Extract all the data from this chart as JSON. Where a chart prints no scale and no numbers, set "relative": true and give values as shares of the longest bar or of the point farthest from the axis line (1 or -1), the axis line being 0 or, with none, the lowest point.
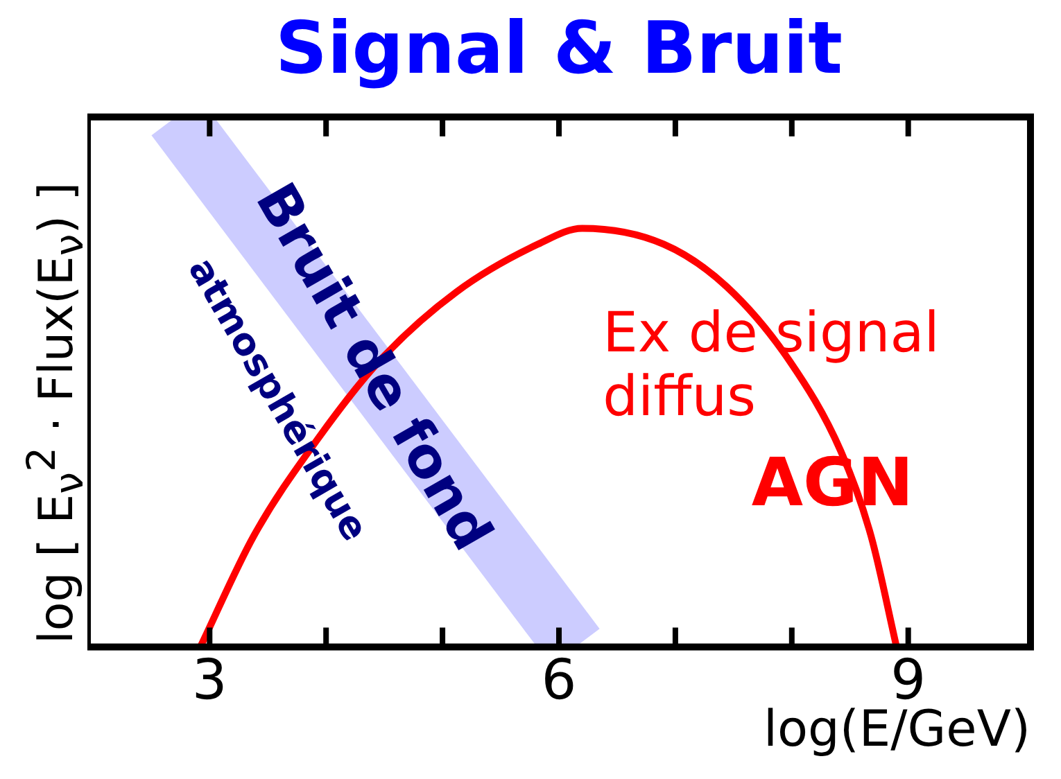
{
  "chart_data": {
    "type": "line",
    "title": "Signal & Bruit",
    "xlabel": "log(E/GeV)",
    "ylabel": "log [ E$_{ν}$$^{2}$ · Flux(E$_{ν}$) ]",
    "relative": true,
    "xlim": [
      1.95,
      10.05
    ],
    "xticks": [
      3,
      {
        "value": 4,
        "label": null
      },
      {
        "value": 5,
        "label": null
      },
      6,
      {
        "value": 7,
        "label": null
      },
      {
        "value": 8,
        "label": null
      },
      9
    ],
    "series": [
      {
        "color": "#ccccff",
        "x": [
          2.71,
          6.14
        ],
        "values": [
          1,
          0
        ]
      },
      {
        "color": "#ff0000",
        "x": [
          2.92,
          3.38,
          3.92,
          4.46,
          5.12,
          5.82,
          6.2,
          6.9,
          7.44,
          7.98,
          8.42,
          8.68,
          8.9
        ],
        "values": [
          0,
          0.21,
          0.39,
          0.54,
          0.67,
          0.76,
          0.79,
          0.76,
          0.68,
          0.54,
          0.37,
          0.21,
          0
        ]
      }
    ],
    "annotations": [
      "Bruit de fond",
      "atmosphérique",
      "Ex de signal diffus",
      "AGN"
    ],
    "legend": false
  }
}
